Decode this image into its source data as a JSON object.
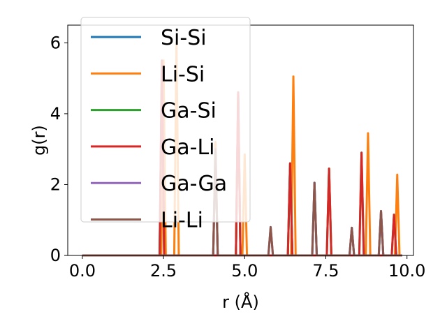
{
  "chart_data": {
    "type": "line",
    "xlabel": "r (Å)",
    "ylabel": "g(r)",
    "xlim": [
      -0.45,
      10.2
    ],
    "ylim": [
      0,
      6.5
    ],
    "xticks": [
      {
        "value": 0.0,
        "label": "0.0"
      },
      {
        "value": 2.5,
        "label": "2.5"
      },
      {
        "value": 5.0,
        "label": "5.0"
      },
      {
        "value": 7.5,
        "label": "7.5"
      },
      {
        "value": 10.0,
        "label": "10.0"
      }
    ],
    "yticks": [
      {
        "value": 0,
        "label": "0"
      },
      {
        "value": 2,
        "label": "2"
      },
      {
        "value": 4,
        "label": "4"
      },
      {
        "value": 6,
        "label": "6"
      }
    ],
    "grid": false,
    "legend_position": "upper-left",
    "peak_half_width": 0.07,
    "series": [
      {
        "name": "Si-Si",
        "color": "#1f77b4",
        "peaks": [
          [
            2.45,
            5.5
          ],
          [
            4.1,
            3.0
          ],
          [
            4.8,
            4.6
          ],
          [
            6.4,
            2.6
          ],
          [
            7.15,
            2.05
          ],
          [
            8.3,
            0.78
          ],
          [
            9.2,
            1.25
          ]
        ]
      },
      {
        "name": "Li-Si",
        "color": "#ff7f0e",
        "peaks": [
          [
            2.5,
            5.5
          ],
          [
            2.9,
            6.0
          ],
          [
            4.1,
            3.2
          ],
          [
            4.8,
            4.6
          ],
          [
            5.0,
            2.85
          ],
          [
            6.5,
            5.05
          ],
          [
            7.6,
            2.45
          ],
          [
            8.8,
            3.45
          ],
          [
            9.7,
            2.28
          ]
        ]
      },
      {
        "name": "Ga-Si",
        "color": "#2ca02c",
        "peaks": [
          [
            2.45,
            5.5
          ],
          [
            4.8,
            4.6
          ],
          [
            6.4,
            2.6
          ],
          [
            7.6,
            2.45
          ],
          [
            8.6,
            2.9
          ],
          [
            9.6,
            1.15
          ]
        ]
      },
      {
        "name": "Ga-Li",
        "color": "#d62728",
        "peaks": [
          [
            2.45,
            5.5
          ],
          [
            4.8,
            4.6
          ],
          [
            6.4,
            2.6
          ],
          [
            7.6,
            2.45
          ],
          [
            8.6,
            2.9
          ],
          [
            9.6,
            1.15
          ]
        ]
      },
      {
        "name": "Ga-Ga",
        "color": "#9467bd",
        "peaks": [
          [
            4.1,
            3.0
          ],
          [
            5.8,
            0.8
          ],
          [
            7.15,
            2.05
          ],
          [
            8.3,
            0.78
          ],
          [
            9.2,
            1.25
          ]
        ]
      },
      {
        "name": "Li-Li",
        "color": "#8c564b",
        "peaks": [
          [
            4.1,
            3.0
          ],
          [
            5.8,
            0.8
          ],
          [
            7.15,
            2.05
          ],
          [
            8.3,
            0.78
          ],
          [
            9.2,
            1.25
          ]
        ]
      }
    ]
  }
}
